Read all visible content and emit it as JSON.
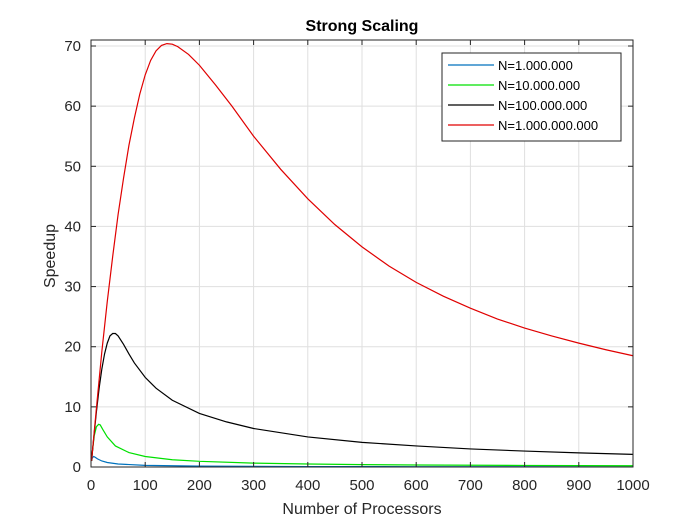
{
  "chart_data": {
    "type": "line",
    "title": "Strong Scaling",
    "xlabel": "Number of Processors",
    "ylabel": "Speedup",
    "xlim": [
      0,
      1000
    ],
    "ylim": [
      0,
      71
    ],
    "xticks": [
      0,
      100,
      200,
      300,
      400,
      500,
      600,
      700,
      800,
      900,
      1000
    ],
    "yticks": [
      0,
      10,
      20,
      30,
      40,
      50,
      60,
      70
    ],
    "grid": true,
    "legend_position": "top-right",
    "series": [
      {
        "name": "N=1.000.000",
        "color": "#0072BD",
        "x": [
          1,
          2,
          3,
          5,
          8,
          12,
          20,
          30,
          50,
          100,
          200,
          400,
          600,
          800,
          1000
        ],
        "y": [
          1.0,
          1.4,
          1.6,
          1.75,
          1.6,
          1.35,
          1.0,
          0.75,
          0.5,
          0.27,
          0.14,
          0.07,
          0.05,
          0.04,
          0.03
        ]
      },
      {
        "name": "N=10.000.000",
        "color": "#00E000",
        "x": [
          1,
          3,
          6,
          10,
          14,
          17,
          22,
          30,
          45,
          70,
          100,
          150,
          200,
          300,
          400,
          500,
          600,
          800,
          1000
        ],
        "y": [
          1.0,
          2.9,
          5.2,
          6.7,
          7.1,
          7.0,
          6.2,
          5.0,
          3.5,
          2.4,
          1.75,
          1.2,
          0.95,
          0.65,
          0.5,
          0.4,
          0.33,
          0.26,
          0.21
        ]
      },
      {
        "name": "N=100.000.000",
        "color": "#000000",
        "x": [
          1,
          5,
          10,
          15,
          20,
          25,
          30,
          35,
          40,
          45,
          50,
          60,
          70,
          80,
          100,
          120,
          150,
          200,
          250,
          300,
          400,
          500,
          600,
          700,
          800,
          900,
          1000
        ],
        "y": [
          1.0,
          4.8,
          9.2,
          13.1,
          16.3,
          18.8,
          20.6,
          21.8,
          22.2,
          22.2,
          21.8,
          20.4,
          18.8,
          17.3,
          14.9,
          13.1,
          11.1,
          8.9,
          7.5,
          6.4,
          5.0,
          4.1,
          3.5,
          3.0,
          2.65,
          2.35,
          2.1
        ]
      },
      {
        "name": "N=1.000.000.000",
        "color": "#E00000",
        "x": [
          1,
          10,
          20,
          30,
          40,
          50,
          60,
          70,
          80,
          90,
          100,
          110,
          120,
          130,
          140,
          150,
          160,
          180,
          200,
          230,
          260,
          300,
          350,
          400,
          450,
          500,
          550,
          600,
          650,
          700,
          750,
          800,
          850,
          900,
          950,
          1000
        ],
        "y": [
          1.0,
          9.8,
          19.2,
          27.5,
          35.0,
          42.0,
          48.0,
          53.5,
          58.0,
          62.0,
          65.2,
          67.6,
          69.2,
          70.1,
          70.4,
          70.3,
          69.9,
          68.6,
          66.8,
          63.5,
          60.0,
          55.0,
          49.5,
          44.6,
          40.3,
          36.6,
          33.4,
          30.7,
          28.4,
          26.4,
          24.6,
          23.1,
          21.8,
          20.6,
          19.5,
          18.5
        ]
      }
    ]
  }
}
